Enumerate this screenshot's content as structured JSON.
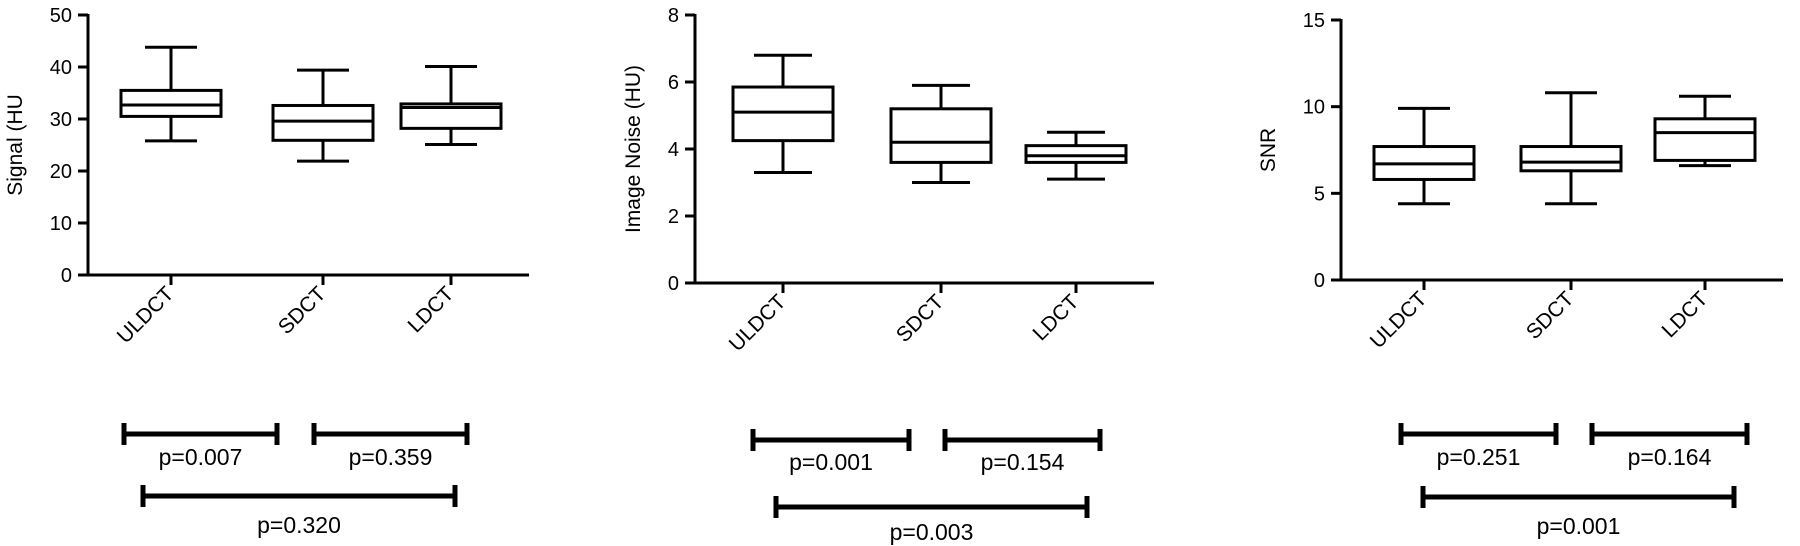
{
  "chart_data": [
    {
      "type": "box",
      "ylabel": "Signal (HU",
      "ylim": [
        0,
        50
      ],
      "yticks": [
        0,
        10,
        20,
        30,
        40,
        50
      ],
      "categories": [
        "ULDCT",
        "SDCT",
        "LDCT"
      ],
      "boxes": [
        {
          "category": "ULDCT",
          "min": 25.8,
          "q1": 30.5,
          "median": 32.7,
          "q3": 35.5,
          "max": 43.8
        },
        {
          "category": "SDCT",
          "min": 21.9,
          "q1": 25.9,
          "median": 29.6,
          "q3": 32.6,
          "max": 39.4
        },
        {
          "category": "LDCT",
          "min": 25.1,
          "q1": 28.2,
          "median": 32.2,
          "q3": 32.9,
          "max": 40.1
        }
      ],
      "comparisons": [
        {
          "pair": [
            "ULDCT",
            "SDCT"
          ],
          "label": "p=0.007"
        },
        {
          "pair": [
            "SDCT",
            "LDCT"
          ],
          "label": "p=0.359"
        },
        {
          "pair": [
            "ULDCT",
            "LDCT"
          ],
          "label": "p=0.320"
        }
      ]
    },
    {
      "type": "box",
      "ylabel": "Image Noise (HU)",
      "ylim": [
        0,
        8
      ],
      "yticks": [
        0,
        2,
        4,
        6,
        8
      ],
      "categories": [
        "ULDCT",
        "SDCT",
        "LDCT"
      ],
      "boxes": [
        {
          "category": "ULDCT",
          "min": 3.3,
          "q1": 4.25,
          "median": 5.1,
          "q3": 5.85,
          "max": 6.8
        },
        {
          "category": "SDCT",
          "min": 3.0,
          "q1": 3.6,
          "median": 4.2,
          "q3": 5.2,
          "max": 5.9
        },
        {
          "category": "LDCT",
          "min": 3.1,
          "q1": 3.6,
          "median": 3.8,
          "q3": 4.1,
          "max": 4.5
        }
      ],
      "comparisons": [
        {
          "pair": [
            "ULDCT",
            "SDCT"
          ],
          "label": "p=0.001"
        },
        {
          "pair": [
            "SDCT",
            "LDCT"
          ],
          "label": "p=0.154"
        },
        {
          "pair": [
            "ULDCT",
            "LDCT"
          ],
          "label": "p=0.003"
        }
      ]
    },
    {
      "type": "box",
      "ylabel": "SNR",
      "ylim": [
        0,
        15
      ],
      "yticks": [
        0,
        5,
        10,
        15
      ],
      "categories": [
        "ULDCT",
        "SDCT",
        "LDCT"
      ],
      "boxes": [
        {
          "category": "ULDCT",
          "min": 4.4,
          "q1": 5.8,
          "median": 6.7,
          "q3": 7.7,
          "max": 9.9
        },
        {
          "category": "SDCT",
          "min": 4.4,
          "q1": 6.3,
          "median": 6.8,
          "q3": 7.7,
          "max": 10.8
        },
        {
          "category": "LDCT",
          "min": 6.6,
          "q1": 6.9,
          "median": 8.5,
          "q3": 9.3,
          "max": 10.6
        }
      ],
      "comparisons": [
        {
          "pair": [
            "ULDCT",
            "SDCT"
          ],
          "label": "p=0.251"
        },
        {
          "pair": [
            "SDCT",
            "LDCT"
          ],
          "label": "p=0.164"
        },
        {
          "pair": [
            "ULDCT",
            "LDCT"
          ],
          "label": "p=0.001"
        }
      ]
    }
  ]
}
